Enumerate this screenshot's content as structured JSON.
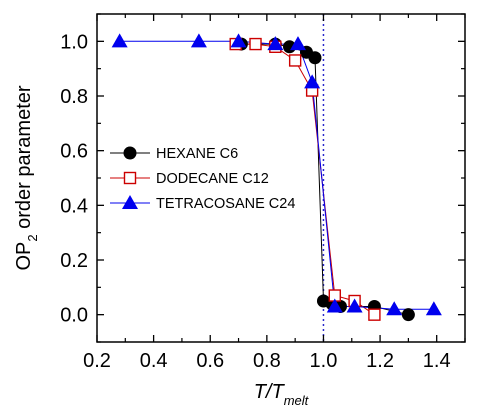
{
  "chart_data": {
    "type": "line",
    "title": "",
    "xlabel": "T/T",
    "xlabel_sub": "melt",
    "ylabel": "OP",
    "ylabel_sub": "2",
    "ylabel_rest": " order parameter",
    "xlim": [
      0.2,
      1.5
    ],
    "ylim": [
      -0.1,
      1.1
    ],
    "xticks": [
      0.2,
      0.4,
      0.6,
      0.8,
      1.0,
      1.2,
      1.4
    ],
    "xtick_labels": [
      "0.2",
      "0.4",
      "0.6",
      "0.8",
      "1.0",
      "1.2",
      "1.4"
    ],
    "yticks": [
      0.0,
      0.2,
      0.4,
      0.6,
      0.8,
      1.0
    ],
    "ytick_labels": [
      "0.0",
      "0.2",
      "0.4",
      "0.6",
      "0.8",
      "1.0"
    ],
    "grid": false,
    "legend_position": "middle-left",
    "vline": {
      "x": 1.0,
      "color": "#2a2acc",
      "style": "dotted"
    },
    "series": [
      {
        "name": "HEXANE C6",
        "marker": "circle",
        "color": "#000000",
        "x": [
          0.71,
          0.83,
          0.88,
          0.94,
          0.97,
          1.0,
          1.03,
          1.06,
          1.18,
          1.3
        ],
        "y": [
          0.99,
          0.99,
          0.98,
          0.96,
          0.94,
          0.05,
          0.04,
          0.03,
          0.03,
          0.0
        ]
      },
      {
        "name": "DODECANE C12",
        "marker": "square-open",
        "color": "#cc0000",
        "x": [
          0.69,
          0.76,
          0.83,
          0.9,
          0.96,
          1.04,
          1.11,
          1.18
        ],
        "y": [
          0.99,
          0.99,
          0.98,
          0.93,
          0.82,
          0.07,
          0.05,
          0.0
        ]
      },
      {
        "name": "TETRACOSANE C24",
        "marker": "triangle",
        "color": "#0000ee",
        "x": [
          0.28,
          0.56,
          0.7,
          0.83,
          0.91,
          0.96,
          1.04,
          1.11,
          1.25,
          1.39
        ],
        "y": [
          1.0,
          1.0,
          1.0,
          0.99,
          0.99,
          0.85,
          0.03,
          0.03,
          0.02,
          0.02
        ]
      }
    ]
  }
}
